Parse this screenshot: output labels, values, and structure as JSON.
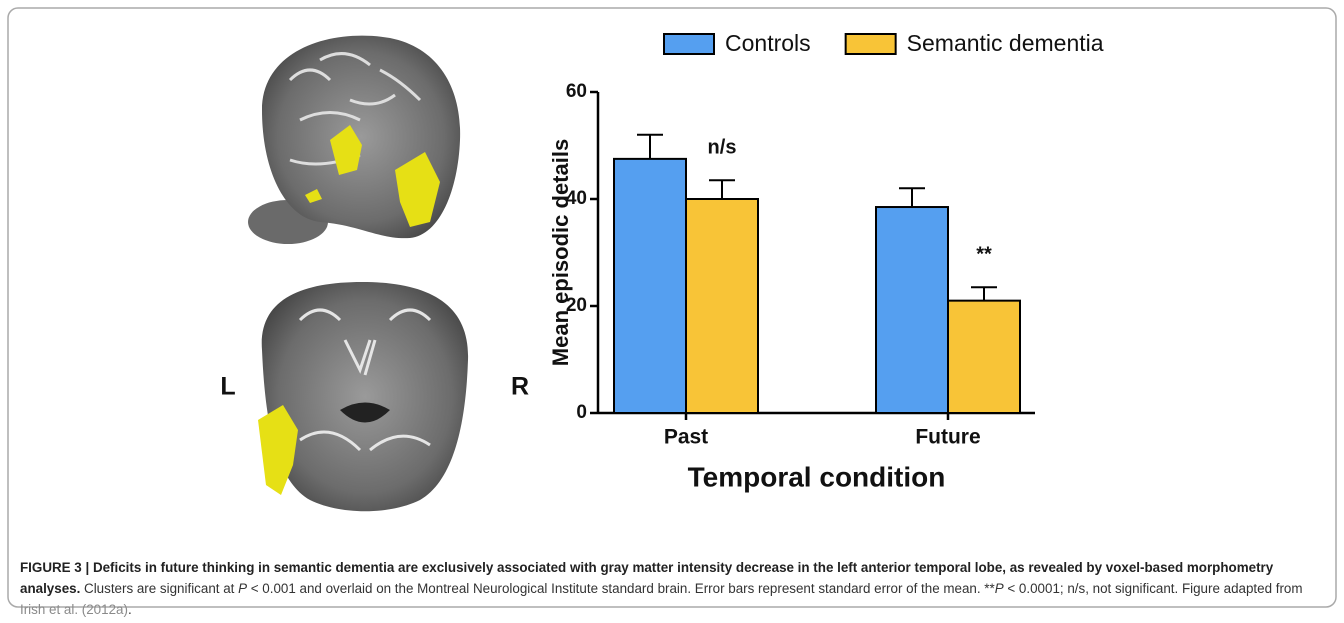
{
  "figure": {
    "side_labels": [
      "L",
      "R"
    ]
  },
  "chart_data": {
    "type": "bar",
    "categories": [
      "Past",
      "Future"
    ],
    "series": [
      {
        "name": "Controls",
        "color": "#559ff0",
        "values": [
          47.5,
          38.5
        ],
        "errors": [
          4.5,
          3.5
        ]
      },
      {
        "name": "Semantic dementia",
        "color": "#f8c437",
        "values": [
          40,
          21
        ],
        "errors": [
          3.5,
          2.5
        ]
      }
    ],
    "ylim": [
      0,
      60
    ],
    "yticks": [
      0,
      20,
      40,
      60
    ],
    "y_label": "Mean episodic details",
    "x_label": "Temporal condition",
    "annotations": [
      "n/s",
      "**"
    ],
    "legend": "top"
  },
  "caption": {
    "heading": "FIGURE 3 | Deficits in future thinking in semantic dementia are exclusively associated with gray matter intensity decrease in the left anterior temporal lobe, as revealed by voxel-based morphometry analyses.",
    "segments": [
      {
        "text": " Clusters are significant at "
      },
      {
        "text": "P",
        "style": "italic"
      },
      {
        "text": " < 0.001 and overlaid on the Montreal Neurological Institute standard brain. Error bars represent standard error of the mean. **"
      },
      {
        "text": "P",
        "style": "italic"
      },
      {
        "text": " < 0.0001; n/s, not significant. Figure adapted from "
      },
      {
        "text": "Irish et al. (2012a)",
        "style": "link"
      },
      {
        "text": "."
      }
    ]
  }
}
